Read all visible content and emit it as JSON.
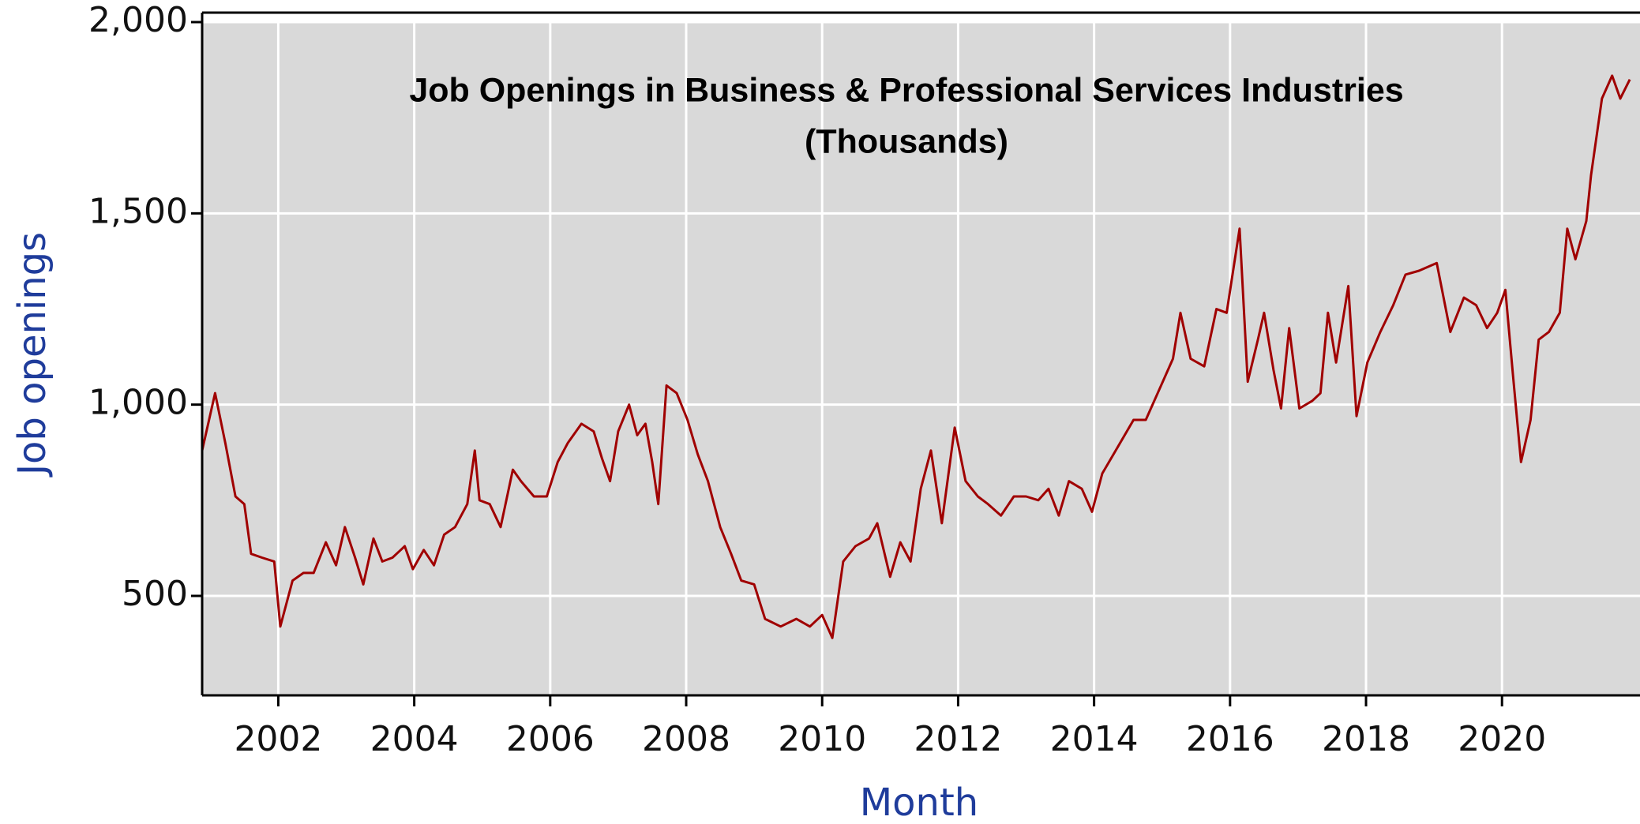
{
  "chart_data": {
    "type": "line",
    "title": "Job Openings in Business & Professional Services Industries",
    "subtitle": "(Thousands)",
    "x_label": "Month",
    "y_label": "Job openings",
    "xlim": [
      2000.88,
      2022.03
    ],
    "ylim": [
      240,
      2000
    ],
    "xticks": [
      2002,
      2004,
      2006,
      2008,
      2010,
      2012,
      2014,
      2016,
      2018,
      2020
    ],
    "yticks": [
      500,
      {
        "value": 1000,
        "label": "1,000"
      },
      {
        "value": 1500,
        "label": "1,500"
      },
      {
        "value": 2000,
        "label": "2,000"
      }
    ],
    "grid": true,
    "x": [
      2000.88,
      2001.07,
      2001.22,
      2001.37,
      2001.5,
      2001.6,
      2001.76,
      2001.94,
      2002.03,
      2002.21,
      2002.37,
      2002.52,
      2002.7,
      2002.85,
      2002.98,
      2003.13,
      2003.25,
      2003.4,
      2003.53,
      2003.68,
      2003.86,
      2003.98,
      2004.14,
      2004.29,
      2004.44,
      2004.6,
      2004.78,
      2004.89,
      2004.96,
      2005.11,
      2005.27,
      2005.45,
      2005.57,
      2005.76,
      2005.95,
      2006.11,
      2006.26,
      2006.46,
      2006.64,
      2006.76,
      2006.88,
      2007.0,
      2007.16,
      2007.28,
      2007.4,
      2007.5,
      2007.59,
      2007.71,
      2007.86,
      2008.02,
      2008.17,
      2008.32,
      2008.5,
      2008.66,
      2008.81,
      2009.0,
      2009.16,
      2009.39,
      2009.62,
      2009.82,
      2010.0,
      2010.15,
      2010.31,
      2010.49,
      2010.69,
      2010.81,
      2011.0,
      2011.15,
      2011.3,
      2011.45,
      2011.6,
      2011.76,
      2011.95,
      2012.11,
      2012.29,
      2012.44,
      2012.63,
      2012.82,
      2013.0,
      2013.18,
      2013.33,
      2013.48,
      2013.63,
      2013.82,
      2013.97,
      2014.12,
      2014.35,
      2014.58,
      2014.76,
      2014.96,
      2015.16,
      2015.27,
      2015.42,
      2015.62,
      2015.8,
      2015.95,
      2016.14,
      2016.26,
      2016.41,
      2016.5,
      2016.64,
      2016.75,
      2016.87,
      2017.02,
      2017.21,
      2017.33,
      2017.44,
      2017.56,
      2017.74,
      2017.86,
      2018.02,
      2018.21,
      2018.4,
      2018.58,
      2018.78,
      2019.04,
      2019.24,
      2019.44,
      2019.62,
      2019.78,
      2019.93,
      2020.05,
      2020.16,
      2020.28,
      2020.42,
      2020.54,
      2020.69,
      2020.85,
      2020.96,
      2021.08,
      2021.24,
      2021.31,
      2021.47,
      2021.62,
      2021.74,
      2021.88
    ],
    "series": [
      {
        "color": "#a00000",
        "values": [
          880,
          1030,
          900,
          760,
          740,
          610,
          600,
          590,
          420,
          540,
          560,
          560,
          640,
          580,
          680,
          600,
          530,
          650,
          590,
          600,
          630,
          570,
          620,
          580,
          660,
          680,
          740,
          880,
          750,
          740,
          680,
          830,
          800,
          760,
          760,
          850,
          900,
          950,
          930,
          860,
          800,
          930,
          1000,
          920,
          950,
          850,
          740,
          1050,
          1030,
          960,
          870,
          800,
          680,
          610,
          540,
          530,
          440,
          420,
          440,
          420,
          450,
          390,
          590,
          630,
          650,
          690,
          550,
          640,
          590,
          780,
          880,
          690,
          940,
          800,
          760,
          740,
          710,
          760,
          760,
          750,
          780,
          710,
          800,
          780,
          720,
          820,
          890,
          960,
          960,
          1040,
          1120,
          1240,
          1120,
          1100,
          1250,
          1240,
          1460,
          1060,
          1170,
          1240,
          1090,
          990,
          1200,
          990,
          1010,
          1030,
          1240,
          1110,
          1310,
          970,
          1110,
          1190,
          1260,
          1340,
          1350,
          1370,
          1190,
          1280,
          1260,
          1200,
          1240,
          1300,
          1080,
          850,
          960,
          1170,
          1190,
          1240,
          1460,
          1380,
          1480,
          1600,
          1800,
          1860,
          1800,
          1850
        ]
      }
    ]
  }
}
